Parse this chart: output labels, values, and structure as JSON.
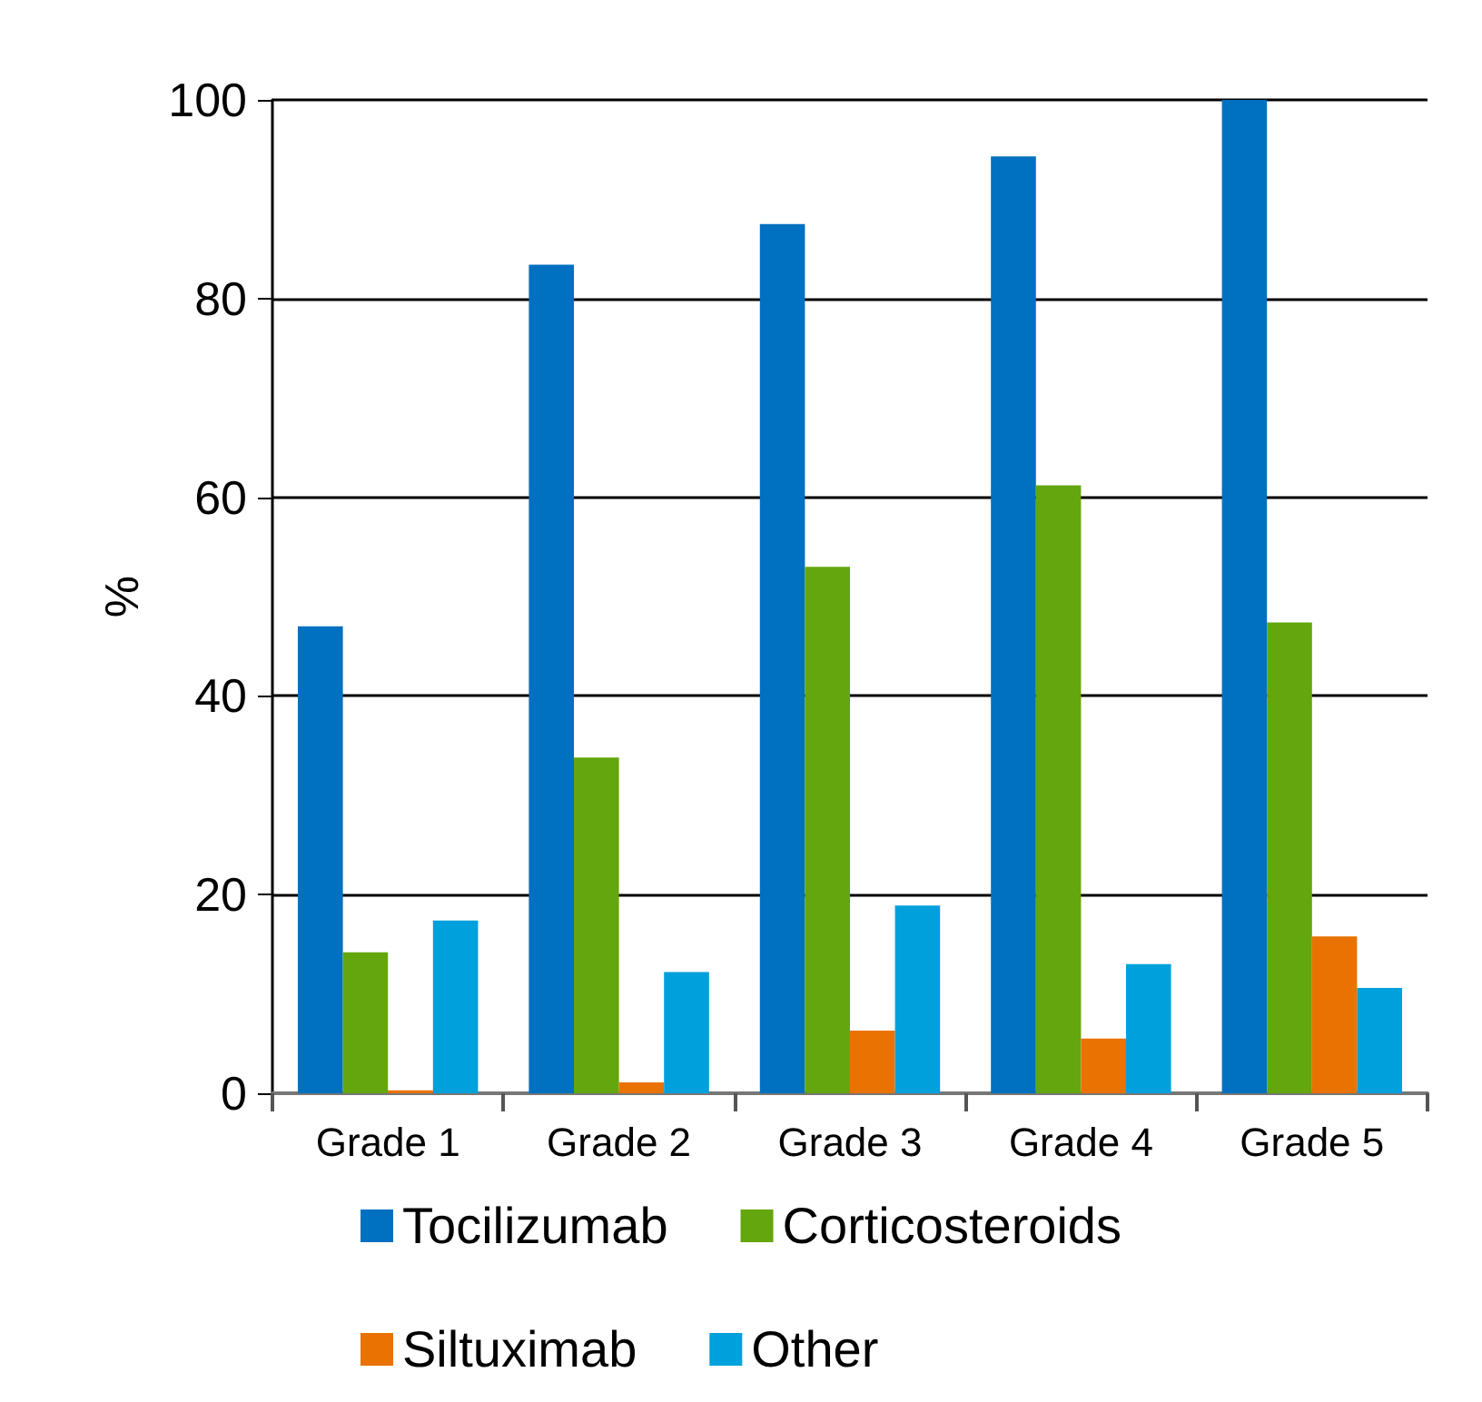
{
  "chart_data": {
    "type": "bar",
    "ylabel": "%",
    "categories": [
      "Grade 1",
      "Grade 2",
      "Grade 3",
      "Grade 4",
      "Grade 5"
    ],
    "series": [
      {
        "name": "Tocilizumab",
        "color": "#0070c0",
        "values": [
          47,
          83.4,
          87.5,
          94.3,
          100
        ]
      },
      {
        "name": "Corticosteroids",
        "color": "#63a60d",
        "values": [
          14.2,
          33.8,
          53,
          61.2,
          47.4
        ]
      },
      {
        "name": "Siltuximab",
        "color": "#e97200",
        "values": [
          0.3,
          1.1,
          6.3,
          5.5,
          15.8
        ]
      },
      {
        "name": "Other",
        "color": "#00a0dc",
        "values": [
          17.4,
          12.2,
          18.9,
          13,
          10.6
        ]
      }
    ],
    "ylim": [
      0,
      100
    ],
    "yticks": [
      0,
      20,
      40,
      60,
      80,
      100
    ],
    "grid": "y",
    "legend": "bottom"
  }
}
